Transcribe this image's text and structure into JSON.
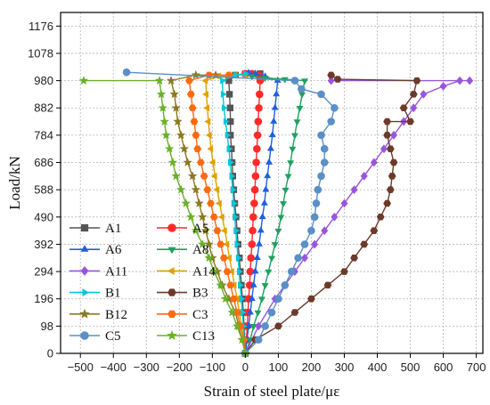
{
  "chart_data": {
    "type": "line",
    "title": "",
    "xlabel": "Strain of steel plate/με",
    "ylabel": "Load/kN",
    "xlim": [
      -560,
      720
    ],
    "ylim": [
      0,
      1225
    ],
    "x_ticks": [
      -500,
      -400,
      -300,
      -200,
      -100,
      0,
      100,
      200,
      300,
      400,
      500,
      600,
      700
    ],
    "y_ticks": [
      0,
      98,
      196,
      294,
      392,
      490,
      588,
      686,
      784,
      882,
      980,
      1078,
      1176
    ],
    "grid": true,
    "legend_position": "lower-left",
    "series": [
      {
        "name": "A1",
        "color": "#555555",
        "marker": "square",
        "points": [
          [
            0,
            0
          ],
          [
            -2,
            49
          ],
          [
            -4,
            98
          ],
          [
            -6,
            147
          ],
          [
            -9,
            196
          ],
          [
            -12,
            245
          ],
          [
            -15,
            294
          ],
          [
            -18,
            343
          ],
          [
            -22,
            392
          ],
          [
            -25,
            441
          ],
          [
            -28,
            490
          ],
          [
            -32,
            539
          ],
          [
            -35,
            588
          ],
          [
            -38,
            637
          ],
          [
            -40,
            686
          ],
          [
            -42,
            735
          ],
          [
            -45,
            784
          ],
          [
            -45,
            833
          ],
          [
            -46,
            882
          ],
          [
            -48,
            931
          ],
          [
            -50,
            980
          ],
          [
            -30,
            1000
          ],
          [
            0,
            1005
          ],
          [
            45,
            1005
          ]
        ]
      },
      {
        "name": "A5",
        "color": "#ff2a2a",
        "marker": "circle",
        "points": [
          [
            0,
            0
          ],
          [
            3,
            49
          ],
          [
            6,
            98
          ],
          [
            8,
            147
          ],
          [
            10,
            196
          ],
          [
            13,
            245
          ],
          [
            15,
            294
          ],
          [
            17,
            343
          ],
          [
            20,
            392
          ],
          [
            22,
            441
          ],
          [
            24,
            490
          ],
          [
            27,
            539
          ],
          [
            29,
            588
          ],
          [
            31,
            637
          ],
          [
            33,
            686
          ],
          [
            35,
            735
          ],
          [
            37,
            784
          ],
          [
            39,
            833
          ],
          [
            41,
            882
          ],
          [
            43,
            931
          ],
          [
            45,
            980
          ],
          [
            40,
            1000
          ],
          [
            20,
            1005
          ],
          [
            0,
            1005
          ]
        ]
      },
      {
        "name": "A6",
        "color": "#1f5fe0",
        "marker": "triangle",
        "points": [
          [
            0,
            0
          ],
          [
            5,
            49
          ],
          [
            10,
            98
          ],
          [
            15,
            147
          ],
          [
            20,
            196
          ],
          [
            25,
            245
          ],
          [
            30,
            294
          ],
          [
            36,
            343
          ],
          [
            42,
            392
          ],
          [
            47,
            441
          ],
          [
            52,
            490
          ],
          [
            58,
            539
          ],
          [
            62,
            588
          ],
          [
            67,
            637
          ],
          [
            72,
            686
          ],
          [
            77,
            735
          ],
          [
            82,
            784
          ],
          [
            86,
            833
          ],
          [
            90,
            882
          ],
          [
            94,
            931
          ],
          [
            98,
            980
          ],
          [
            60,
            995
          ],
          [
            30,
            1005
          ],
          [
            10,
            1008
          ]
        ]
      },
      {
        "name": "A8",
        "color": "#20a060",
        "marker": "triangle-down",
        "points": [
          [
            0,
            0
          ],
          [
            15,
            49
          ],
          [
            25,
            98
          ],
          [
            38,
            147
          ],
          [
            50,
            196
          ],
          [
            60,
            245
          ],
          [
            70,
            294
          ],
          [
            80,
            343
          ],
          [
            90,
            392
          ],
          [
            100,
            441
          ],
          [
            108,
            490
          ],
          [
            115,
            539
          ],
          [
            122,
            588
          ],
          [
            130,
            637
          ],
          [
            137,
            686
          ],
          [
            143,
            735
          ],
          [
            150,
            784
          ],
          [
            157,
            833
          ],
          [
            165,
            882
          ],
          [
            172,
            931
          ],
          [
            180,
            980
          ],
          [
            120,
            985
          ],
          [
            60,
            990
          ],
          [
            20,
            995
          ]
        ]
      },
      {
        "name": "A11",
        "color": "#9955dd",
        "marker": "diamond",
        "points": [
          [
            0,
            0
          ],
          [
            40,
            98
          ],
          [
            90,
            196
          ],
          [
            120,
            245
          ],
          [
            150,
            294
          ],
          [
            180,
            343
          ],
          [
            210,
            392
          ],
          [
            240,
            441
          ],
          [
            270,
            490
          ],
          [
            300,
            539
          ],
          [
            330,
            588
          ],
          [
            360,
            637
          ],
          [
            390,
            686
          ],
          [
            420,
            735
          ],
          [
            450,
            784
          ],
          [
            480,
            833
          ],
          [
            510,
            882
          ],
          [
            540,
            931
          ],
          [
            600,
            960
          ],
          [
            650,
            980
          ],
          [
            680,
            980
          ],
          [
            260,
            980
          ]
        ]
      },
      {
        "name": "A14",
        "color": "#e0a000",
        "marker": "triangle-left",
        "points": [
          [
            0,
            0
          ],
          [
            -5,
            49
          ],
          [
            -12,
            98
          ],
          [
            -18,
            147
          ],
          [
            -25,
            196
          ],
          [
            -33,
            245
          ],
          [
            -40,
            294
          ],
          [
            -48,
            343
          ],
          [
            -55,
            392
          ],
          [
            -62,
            441
          ],
          [
            -70,
            490
          ],
          [
            -78,
            539
          ],
          [
            -85,
            588
          ],
          [
            -92,
            637
          ],
          [
            -98,
            686
          ],
          [
            -104,
            735
          ],
          [
            -108,
            784
          ],
          [
            -112,
            833
          ],
          [
            -115,
            882
          ],
          [
            -118,
            931
          ],
          [
            -120,
            980
          ],
          [
            -80,
            995
          ],
          [
            -30,
            1000
          ],
          [
            0,
            1000
          ]
        ]
      },
      {
        "name": "B1",
        "color": "#00c8d8",
        "marker": "triangle-right",
        "points": [
          [
            0,
            0
          ],
          [
            -3,
            49
          ],
          [
            -6,
            98
          ],
          [
            -9,
            147
          ],
          [
            -12,
            196
          ],
          [
            -16,
            245
          ],
          [
            -19,
            294
          ],
          [
            -22,
            343
          ],
          [
            -26,
            392
          ],
          [
            -29,
            441
          ],
          [
            -32,
            490
          ],
          [
            -35,
            539
          ],
          [
            -38,
            588
          ],
          [
            -42,
            637
          ],
          [
            -46,
            686
          ],
          [
            -50,
            735
          ],
          [
            -55,
            784
          ],
          [
            -60,
            833
          ],
          [
            -65,
            882
          ],
          [
            -68,
            931
          ],
          [
            -70,
            980
          ],
          [
            -30,
            1000
          ],
          [
            0,
            1005
          ]
        ]
      },
      {
        "name": "B3",
        "color": "#6b3a2a",
        "marker": "hexagon",
        "points": [
          [
            0,
            0
          ],
          [
            30,
            49
          ],
          [
            100,
            98
          ],
          [
            150,
            147
          ],
          [
            200,
            196
          ],
          [
            250,
            245
          ],
          [
            300,
            294
          ],
          [
            330,
            343
          ],
          [
            360,
            392
          ],
          [
            390,
            441
          ],
          [
            410,
            490
          ],
          [
            430,
            539
          ],
          [
            440,
            588
          ],
          [
            445,
            637
          ],
          [
            450,
            686
          ],
          [
            440,
            735
          ],
          [
            430,
            784
          ],
          [
            430,
            833
          ],
          [
            500,
            833
          ],
          [
            480,
            882
          ],
          [
            510,
            931
          ],
          [
            520,
            980
          ],
          [
            280,
            985
          ],
          [
            260,
            1000
          ]
        ]
      },
      {
        "name": "B12",
        "color": "#8a7a20",
        "marker": "star",
        "points": [
          [
            0,
            0
          ],
          [
            -10,
            49
          ],
          [
            -20,
            98
          ],
          [
            -30,
            147
          ],
          [
            -50,
            196
          ],
          [
            -70,
            245
          ],
          [
            -85,
            294
          ],
          [
            -100,
            343
          ],
          [
            -110,
            392
          ],
          [
            -120,
            441
          ],
          [
            -130,
            490
          ],
          [
            -140,
            539
          ],
          [
            -150,
            588
          ],
          [
            -160,
            637
          ],
          [
            -175,
            686
          ],
          [
            -185,
            735
          ],
          [
            -195,
            784
          ],
          [
            -205,
            833
          ],
          [
            -210,
            882
          ],
          [
            -215,
            931
          ],
          [
            -225,
            980
          ],
          [
            -150,
            1000
          ],
          [
            -90,
            1000
          ]
        ]
      },
      {
        "name": "C3",
        "color": "#ff6a10",
        "marker": "hexagon",
        "points": [
          [
            0,
            0
          ],
          [
            -5,
            49
          ],
          [
            -15,
            98
          ],
          [
            -25,
            147
          ],
          [
            -35,
            196
          ],
          [
            -45,
            245
          ],
          [
            -55,
            294
          ],
          [
            -65,
            343
          ],
          [
            -75,
            392
          ],
          [
            -85,
            441
          ],
          [
            -95,
            490
          ],
          [
            -105,
            539
          ],
          [
            -115,
            588
          ],
          [
            -125,
            637
          ],
          [
            -135,
            686
          ],
          [
            -145,
            735
          ],
          [
            -150,
            784
          ],
          [
            -155,
            833
          ],
          [
            -160,
            882
          ],
          [
            -165,
            931
          ],
          [
            -170,
            980
          ],
          [
            -110,
            1000
          ],
          [
            -50,
            1000
          ]
        ]
      },
      {
        "name": "C5",
        "color": "#5a8fc8",
        "marker": "circle",
        "points": [
          [
            0,
            0
          ],
          [
            40,
            49
          ],
          [
            60,
            98
          ],
          [
            80,
            147
          ],
          [
            100,
            196
          ],
          [
            120,
            245
          ],
          [
            140,
            294
          ],
          [
            160,
            343
          ],
          [
            180,
            392
          ],
          [
            200,
            441
          ],
          [
            210,
            490
          ],
          [
            215,
            539
          ],
          [
            220,
            588
          ],
          [
            230,
            637
          ],
          [
            240,
            686
          ],
          [
            240,
            735
          ],
          [
            230,
            784
          ],
          [
            260,
            833
          ],
          [
            270,
            882
          ],
          [
            230,
            931
          ],
          [
            170,
            950
          ],
          [
            150,
            980
          ],
          [
            -360,
            1010
          ]
        ]
      },
      {
        "name": "C13",
        "color": "#6ab02a",
        "marker": "star",
        "points": [
          [
            0,
            0
          ],
          [
            -10,
            49
          ],
          [
            -25,
            98
          ],
          [
            -40,
            147
          ],
          [
            -60,
            196
          ],
          [
            -75,
            245
          ],
          [
            -95,
            294
          ],
          [
            -110,
            343
          ],
          [
            -130,
            392
          ],
          [
            -150,
            441
          ],
          [
            -165,
            490
          ],
          [
            -180,
            539
          ],
          [
            -195,
            588
          ],
          [
            -210,
            637
          ],
          [
            -220,
            686
          ],
          [
            -230,
            735
          ],
          [
            -240,
            784
          ],
          [
            -245,
            833
          ],
          [
            -250,
            882
          ],
          [
            -255,
            931
          ],
          [
            -260,
            980
          ],
          [
            -490,
            980
          ]
        ]
      }
    ]
  }
}
